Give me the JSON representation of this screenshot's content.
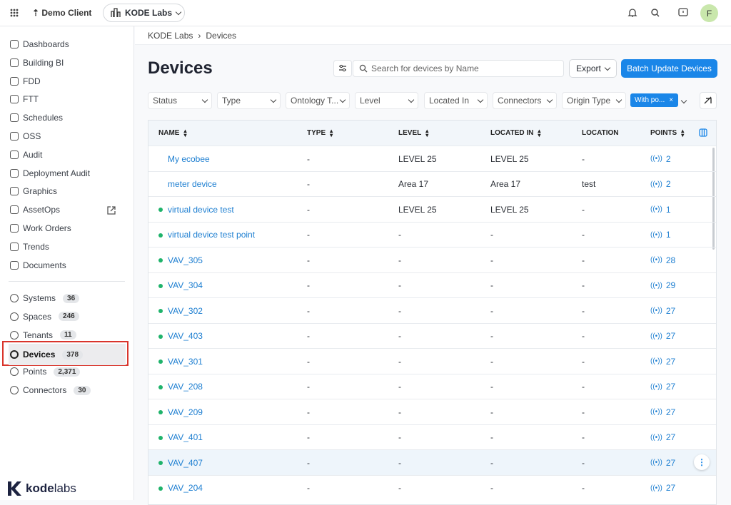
{
  "topbar": {
    "client": "Demo Client",
    "org": "KODE Labs",
    "avatar": "F"
  },
  "sidebar": {
    "nav": [
      "Dashboards",
      "Building BI",
      "FDD",
      "FTT",
      "Schedules",
      "OSS",
      "Audit",
      "Deployment Audit",
      "Graphics",
      "AssetOps",
      "Work Orders",
      "Trends",
      "Documents"
    ],
    "entities": [
      {
        "label": "Systems",
        "count": "36"
      },
      {
        "label": "Spaces",
        "count": "246"
      },
      {
        "label": "Tenants",
        "count": "11"
      },
      {
        "label": "Devices",
        "count": "378",
        "active": true
      },
      {
        "label": "Points",
        "count": "2,371"
      },
      {
        "label": "Connectors",
        "count": "30"
      }
    ],
    "logo": [
      "kode",
      "labs"
    ]
  },
  "breadcrumb": [
    "KODE Labs",
    "Devices"
  ],
  "page": {
    "title": "Devices",
    "search_placeholder": "Search for devices by Name",
    "export": "Export",
    "batch": "Batch Update Devices"
  },
  "filters": [
    "Status",
    "Type",
    "Ontology T...",
    "Level",
    "Located In",
    "Connectors",
    "Origin Type"
  ],
  "active_filter": "With po...",
  "table": {
    "columns": [
      "NAME",
      "TYPE",
      "LEVEL",
      "LOCATED IN",
      "LOCATION",
      "POINTS"
    ],
    "highlight_row": 12,
    "rows": [
      {
        "status_dot": false,
        "cells": [
          "My ecobee",
          "-",
          "LEVEL 25",
          "LEVEL 25",
          "-",
          2
        ]
      },
      {
        "status_dot": false,
        "cells": [
          "meter device",
          "-",
          "Area 17",
          "Area 17",
          "test",
          2
        ]
      },
      {
        "status_dot": true,
        "cells": [
          "virtual device test",
          "-",
          "LEVEL 25",
          "LEVEL 25",
          "-",
          1
        ]
      },
      {
        "status_dot": true,
        "cells": [
          "virtual device test point",
          "-",
          "-",
          "-",
          "-",
          1
        ]
      },
      {
        "status_dot": true,
        "cells": [
          "VAV_305",
          "-",
          "-",
          "-",
          "-",
          28
        ]
      },
      {
        "status_dot": true,
        "cells": [
          "VAV_304",
          "-",
          "-",
          "-",
          "-",
          29
        ]
      },
      {
        "status_dot": true,
        "cells": [
          "VAV_302",
          "-",
          "-",
          "-",
          "-",
          27
        ]
      },
      {
        "status_dot": true,
        "cells": [
          "VAV_403",
          "-",
          "-",
          "-",
          "-",
          27
        ]
      },
      {
        "status_dot": true,
        "cells": [
          "VAV_301",
          "-",
          "-",
          "-",
          "-",
          27
        ]
      },
      {
        "status_dot": true,
        "cells": [
          "VAV_208",
          "-",
          "-",
          "-",
          "-",
          27
        ]
      },
      {
        "status_dot": true,
        "cells": [
          "VAV_209",
          "-",
          "-",
          "-",
          "-",
          27
        ]
      },
      {
        "status_dot": true,
        "cells": [
          "VAV_401",
          "-",
          "-",
          "-",
          "-",
          27
        ]
      },
      {
        "status_dot": true,
        "cells": [
          "VAV_407",
          "-",
          "-",
          "-",
          "-",
          27
        ]
      },
      {
        "status_dot": true,
        "cells": [
          "VAV_204",
          "-",
          "-",
          "-",
          "-",
          27
        ]
      }
    ]
  }
}
